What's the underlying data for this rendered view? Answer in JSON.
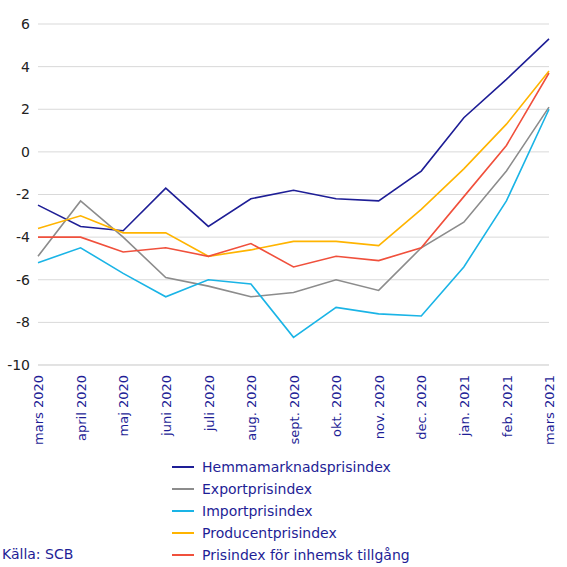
{
  "chart_data": {
    "type": "line",
    "source": "Källa: SCB",
    "categories": [
      "mars 2020",
      "april 2020",
      "maj 2020",
      "juni 2020",
      "juli 2020",
      "aug. 2020",
      "sept. 2020",
      "okt. 2020",
      "nov. 2020",
      "dec. 2020",
      "jan. 2021",
      "feb. 2021",
      "mars 2021"
    ],
    "series": [
      {
        "name": "Hemmamarknadsprisindex",
        "color": "#1e1e96",
        "values": [
          -2.5,
          -3.5,
          -3.7,
          -1.7,
          -3.5,
          -2.2,
          -1.8,
          -2.2,
          -2.3,
          -0.9,
          1.6,
          3.4,
          5.3
        ]
      },
      {
        "name": "Exportprisindex",
        "color": "#8c8c8c",
        "values": [
          -4.9,
          -2.3,
          -4.0,
          -5.9,
          -6.3,
          -6.8,
          -6.6,
          -6.0,
          -6.5,
          -4.5,
          -3.3,
          -0.9,
          2.1
        ]
      },
      {
        "name": "Importprisindex",
        "color": "#1ab4e6",
        "values": [
          -5.2,
          -4.5,
          -5.7,
          -6.8,
          -6.0,
          -6.2,
          -8.7,
          -7.3,
          -7.6,
          -7.7,
          -5.4,
          -2.3,
          2.0
        ]
      },
      {
        "name": "Producentprisindex",
        "color": "#ffb400",
        "values": [
          -3.6,
          -3.0,
          -3.8,
          -3.8,
          -4.9,
          -4.6,
          -4.2,
          -4.2,
          -4.4,
          -2.7,
          -0.8,
          1.3,
          3.8
        ]
      },
      {
        "name": "Prisindex för inhemsk tillgång",
        "color": "#f0503c",
        "values": [
          -4.0,
          -4.0,
          -4.7,
          -4.5,
          -4.9,
          -4.3,
          -5.4,
          -4.9,
          -5.1,
          -4.5,
          -2.1,
          0.3,
          3.7
        ]
      }
    ],
    "ylim": [
      -10,
      6
    ],
    "yticks": [
      -10,
      -8,
      -6,
      -4,
      -2,
      0,
      2,
      4,
      6
    ],
    "grid": true,
    "legend": "bottom"
  }
}
